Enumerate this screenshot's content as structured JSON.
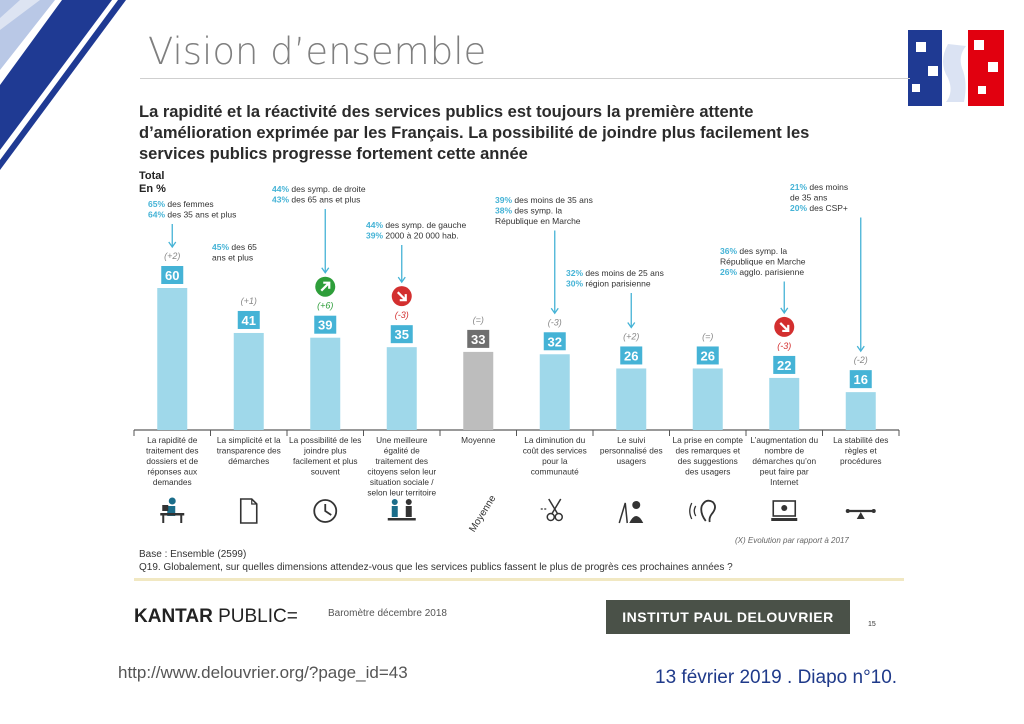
{
  "slide": {
    "title": "Vision d’ensemble",
    "url": "http://www.delouvrier.org/?page_id=43",
    "date_label": "13 février 2019 . Diapo n°10."
  },
  "headline": {
    "line1": "La rapidité et la réactivité des services publics est toujours la première attente",
    "line2": "d’amélioration exprimée par les Français. La possibilité de joindre plus facilement les",
    "line3": "services publics progresse fortement cette année"
  },
  "total_label": {
    "line1": "Total",
    "line2": "En %"
  },
  "footer": {
    "base": "Base : Ensemble (2599)",
    "question": "Q19. Globalement, sur quelles dimensions attendez-vous que les services publics fassent le plus de progrès ces prochaines années ?",
    "evolution_note": "(X) Evolution par rapport à 2017",
    "kantar_bold": "KANTAR",
    "kantar_rest": " PUBLIC=",
    "barometre": "Baromètre décembre 2018",
    "institut": "INSTITUT PAUL DELOUVRIER",
    "page": "15"
  },
  "colors": {
    "bar": "#9fd8ea",
    "label_box": "#45b3d6",
    "average_bar": "#bdbdbd",
    "average_box": "#6e6e6e",
    "up": "#2e9e3a",
    "down": "#d32f2f",
    "arrow": "#45b3d6"
  },
  "chart_data": {
    "type": "bar",
    "title": "La rapidité et la réactivité des services publics est toujours la première attente d’amélioration exprimée par les Français. La possibilité de joindre plus facilement les services publics progresse fortement cette année",
    "ylabel": "En %",
    "ylim": [
      0,
      60
    ],
    "grid": false,
    "categories": [
      [
        "La rapidité de",
        "traitement des",
        "dossiers et de",
        "réponses aux",
        "demandes"
      ],
      [
        "La simplicité et la",
        "transparence des",
        "démarches"
      ],
      [
        "La possibilité de les",
        "joindre plus",
        "facilement et plus",
        "souvent"
      ],
      [
        "Une meilleure",
        "égalité de",
        "traitement des",
        "citoyens selon leur",
        "situation sociale /",
        "selon leur territoire"
      ],
      [
        "Moyenne"
      ],
      [
        "La diminution du",
        "coût des services",
        "pour la",
        "communauté"
      ],
      [
        "Le suivi",
        "personnalisé des",
        "usagers"
      ],
      [
        "La prise en compte",
        "des remarques et",
        "des suggestions",
        "des usagers"
      ],
      [
        "L’augmentation du",
        "nombre de",
        "démarches qu’on",
        "peut faire par",
        "Internet"
      ],
      [
        "La stabilité des",
        "règles et",
        "procédures"
      ]
    ],
    "values": [
      60,
      41,
      39,
      35,
      33,
      32,
      26,
      26,
      22,
      16
    ],
    "evolution": [
      "(+2)",
      "(+1)",
      "(+6)",
      "(-3)",
      "(=)",
      "(-3)",
      "(+2)",
      "(=)",
      "(-3)",
      "(-2)"
    ],
    "trend_icons": [
      "",
      "",
      "up",
      "down",
      "",
      "",
      "",
      "",
      "down",
      ""
    ],
    "average_index": 4,
    "average_icon_label": "Moyenne",
    "pictograms": [
      "person-at-desk-icon",
      "document-icon",
      "clock-icon",
      "people-equality-icon",
      "",
      "scissors-icon",
      "person-assisted-icon",
      "ear-icon",
      "computer-icon",
      "balance-icon"
    ],
    "callouts": [
      {
        "bar": 0,
        "lines": [
          [
            "65%",
            " des femmes"
          ],
          [
            "64%",
            " des 35 ans et plus"
          ]
        ]
      },
      {
        "bar": 1,
        "lines": [
          [
            "45%",
            " des 65"
          ],
          [
            "",
            "ans et plus"
          ]
        ]
      },
      {
        "bar": 2,
        "lines": [
          [
            "44%",
            " des symp. de droite"
          ],
          [
            "43%",
            " des 65 ans et plus"
          ]
        ]
      },
      {
        "bar": 3,
        "lines": [
          [
            "44%",
            " des symp. de gauche"
          ],
          [
            "39%",
            " 2000 à 20 000 hab."
          ]
        ]
      },
      {
        "bar": 5,
        "lines": [
          [
            "39%",
            " des moins de 35 ans"
          ],
          [
            "38%",
            " des symp. la"
          ],
          [
            "",
            "République en Marche"
          ]
        ]
      },
      {
        "bar": 6,
        "lines": [
          [
            "32%",
            " des moins de 25 ans"
          ],
          [
            "30%",
            " région parisienne"
          ]
        ]
      },
      {
        "bar": 8,
        "lines": [
          [
            "36%",
            " des symp. la"
          ],
          [
            "",
            "République en Marche"
          ],
          [
            "26%",
            " agglo. parisienne"
          ]
        ]
      },
      {
        "bar": 9,
        "lines": [
          [
            "21%",
            " des moins"
          ],
          [
            "",
            "de 35 ans"
          ],
          [
            "20%",
            " des CSP+"
          ]
        ]
      }
    ]
  }
}
